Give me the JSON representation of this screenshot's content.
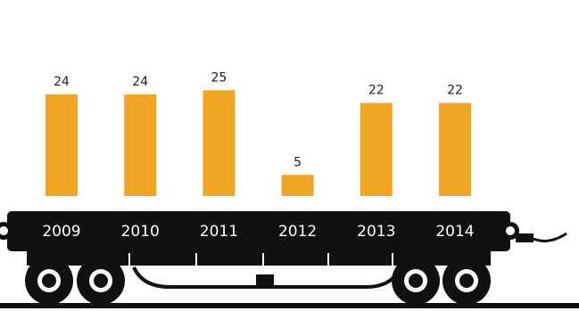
{
  "chart_data": {
    "type": "bar",
    "categories": [
      "2009",
      "2010",
      "2011",
      "2012",
      "2013",
      "2014"
    ],
    "values": [
      24,
      24,
      25,
      5,
      22,
      22
    ],
    "color": "#f0a523"
  }
}
